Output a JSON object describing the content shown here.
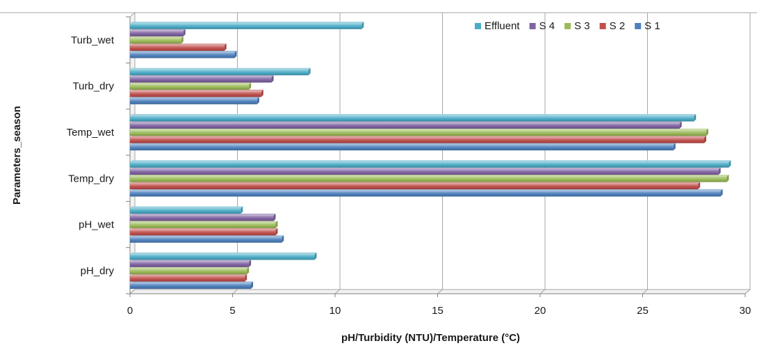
{
  "chart_data": {
    "type": "bar",
    "orientation": "horizontal",
    "categories": [
      "pH_dry",
      "pH_wet",
      "Temp_dry",
      "Temp_wet",
      "Turb_dry",
      "Turb_wet"
    ],
    "series": [
      {
        "name": "S 1",
        "color": "#4f81bd",
        "values": [
          5.9,
          7.4,
          28.8,
          26.5,
          6.2,
          5.1
        ]
      },
      {
        "name": "S 2",
        "color": "#c0504d",
        "values": [
          5.6,
          7.1,
          27.7,
          28.0,
          6.4,
          4.6
        ]
      },
      {
        "name": "S 3",
        "color": "#9bbb59",
        "values": [
          5.7,
          7.1,
          29.1,
          28.1,
          5.8,
          2.5
        ]
      },
      {
        "name": "S 4",
        "color": "#8064a2",
        "values": [
          5.8,
          7.0,
          28.7,
          26.8,
          6.9,
          2.6
        ]
      },
      {
        "name": "Effluent",
        "color": "#4bacc6",
        "values": [
          9.0,
          5.4,
          29.2,
          27.5,
          8.7,
          11.3
        ]
      }
    ],
    "legend_order": [
      "Effluent",
      "S 4",
      "S 3",
      "S 2",
      "S 1"
    ],
    "xlabel": "pH/Turbidity (NTU)/Temperature (°C)",
    "ylabel": "Parameters_season",
    "xlim": [
      0,
      30
    ],
    "xticks": [
      "0",
      "5",
      "10",
      "15",
      "20",
      "25",
      "30"
    ],
    "grid": true,
    "legend_position": "top-right"
  }
}
